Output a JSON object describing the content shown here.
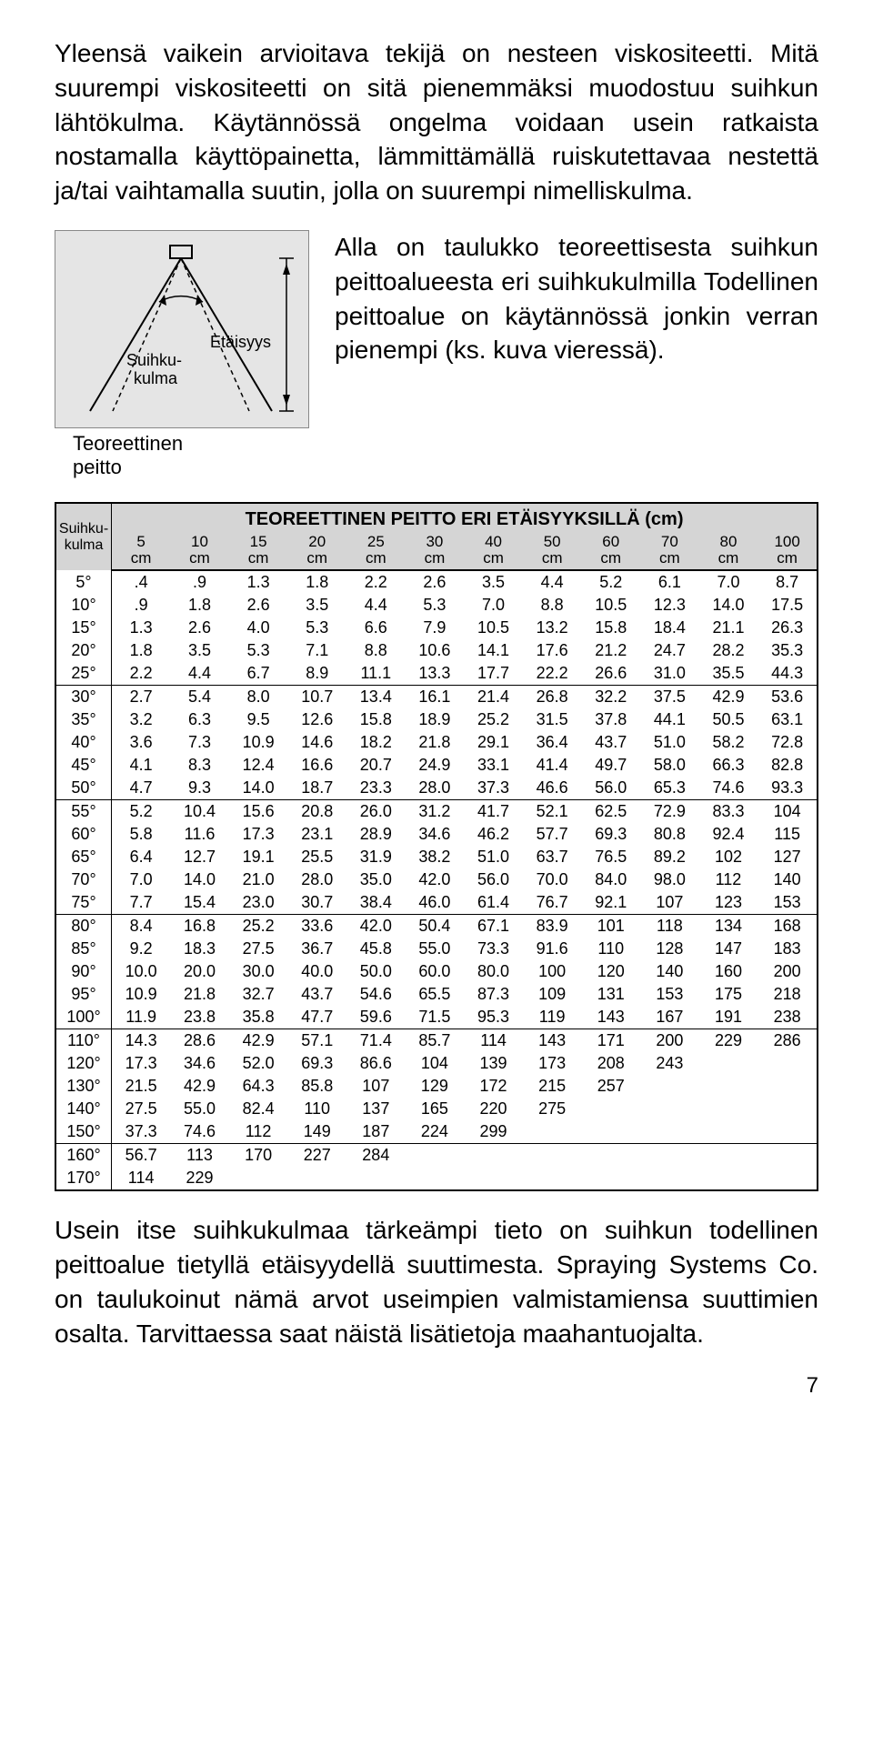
{
  "para1": "Yleensä vaikein arvioitava tekijä on nesteen viskositeetti. Mitä suurempi viskositeetti on sitä pienemmäksi muodostuu suihkun lähtökulma. Käytännössä ongelma voidaan usein ratkaista nostamalla käyttöpainetta, lämmittämällä ruiskutettavaa nestettä ja/tai vaihtamalla suutin, jolla on suurempi nimelliskulma.",
  "diag": {
    "angle_label": "Suihku-\nkulma",
    "dist_label": "Etäisyys",
    "below_label": "Teoreettinen\npeitto",
    "side_text": "Alla on taulukko teoreettisesta suihkun peittoalueesta eri suihkukulmilla Todellinen peittoalue on käytännössä jonkin verran pienempi (ks. kuva vieressä).",
    "bg": "#e5e5e5",
    "line": "#000000",
    "dash": "#000000"
  },
  "table": {
    "corner": "Suihku-\nkulma",
    "title": "TEOREETTINEN PEITTO ERI ETÄISYYKSILLÄ (cm)",
    "dist_headers": [
      "5",
      "10",
      "15",
      "20",
      "25",
      "30",
      "40",
      "50",
      "60",
      "70",
      "80",
      "100"
    ],
    "unit": "cm",
    "groups": [
      [
        [
          "5°",
          ".4",
          ".9",
          "1.3",
          "1.8",
          "2.2",
          "2.6",
          "3.5",
          "4.4",
          "5.2",
          "6.1",
          "7.0",
          "8.7"
        ],
        [
          "10°",
          ".9",
          "1.8",
          "2.6",
          "3.5",
          "4.4",
          "5.3",
          "7.0",
          "8.8",
          "10.5",
          "12.3",
          "14.0",
          "17.5"
        ],
        [
          "15°",
          "1.3",
          "2.6",
          "4.0",
          "5.3",
          "6.6",
          "7.9",
          "10.5",
          "13.2",
          "15.8",
          "18.4",
          "21.1",
          "26.3"
        ],
        [
          "20°",
          "1.8",
          "3.5",
          "5.3",
          "7.1",
          "8.8",
          "10.6",
          "14.1",
          "17.6",
          "21.2",
          "24.7",
          "28.2",
          "35.3"
        ],
        [
          "25°",
          "2.2",
          "4.4",
          "6.7",
          "8.9",
          "11.1",
          "13.3",
          "17.7",
          "22.2",
          "26.6",
          "31.0",
          "35.5",
          "44.3"
        ]
      ],
      [
        [
          "30°",
          "2.7",
          "5.4",
          "8.0",
          "10.7",
          "13.4",
          "16.1",
          "21.4",
          "26.8",
          "32.2",
          "37.5",
          "42.9",
          "53.6"
        ],
        [
          "35°",
          "3.2",
          "6.3",
          "9.5",
          "12.6",
          "15.8",
          "18.9",
          "25.2",
          "31.5",
          "37.8",
          "44.1",
          "50.5",
          "63.1"
        ],
        [
          "40°",
          "3.6",
          "7.3",
          "10.9",
          "14.6",
          "18.2",
          "21.8",
          "29.1",
          "36.4",
          "43.7",
          "51.0",
          "58.2",
          "72.8"
        ],
        [
          "45°",
          "4.1",
          "8.3",
          "12.4",
          "16.6",
          "20.7",
          "24.9",
          "33.1",
          "41.4",
          "49.7",
          "58.0",
          "66.3",
          "82.8"
        ],
        [
          "50°",
          "4.7",
          "9.3",
          "14.0",
          "18.7",
          "23.3",
          "28.0",
          "37.3",
          "46.6",
          "56.0",
          "65.3",
          "74.6",
          "93.3"
        ]
      ],
      [
        [
          "55°",
          "5.2",
          "10.4",
          "15.6",
          "20.8",
          "26.0",
          "31.2",
          "41.7",
          "52.1",
          "62.5",
          "72.9",
          "83.3",
          "104"
        ],
        [
          "60°",
          "5.8",
          "11.6",
          "17.3",
          "23.1",
          "28.9",
          "34.6",
          "46.2",
          "57.7",
          "69.3",
          "80.8",
          "92.4",
          "115"
        ],
        [
          "65°",
          "6.4",
          "12.7",
          "19.1",
          "25.5",
          "31.9",
          "38.2",
          "51.0",
          "63.7",
          "76.5",
          "89.2",
          "102",
          "127"
        ],
        [
          "70°",
          "7.0",
          "14.0",
          "21.0",
          "28.0",
          "35.0",
          "42.0",
          "56.0",
          "70.0",
          "84.0",
          "98.0",
          "112",
          "140"
        ],
        [
          "75°",
          "7.7",
          "15.4",
          "23.0",
          "30.7",
          "38.4",
          "46.0",
          "61.4",
          "76.7",
          "92.1",
          "107",
          "123",
          "153"
        ]
      ],
      [
        [
          "80°",
          "8.4",
          "16.8",
          "25.2",
          "33.6",
          "42.0",
          "50.4",
          "67.1",
          "83.9",
          "101",
          "118",
          "134",
          "168"
        ],
        [
          "85°",
          "9.2",
          "18.3",
          "27.5",
          "36.7",
          "45.8",
          "55.0",
          "73.3",
          "91.6",
          "110",
          "128",
          "147",
          "183"
        ],
        [
          "90°",
          "10.0",
          "20.0",
          "30.0",
          "40.0",
          "50.0",
          "60.0",
          "80.0",
          "100",
          "120",
          "140",
          "160",
          "200"
        ],
        [
          "95°",
          "10.9",
          "21.8",
          "32.7",
          "43.7",
          "54.6",
          "65.5",
          "87.3",
          "109",
          "131",
          "153",
          "175",
          "218"
        ],
        [
          "100°",
          "11.9",
          "23.8",
          "35.8",
          "47.7",
          "59.6",
          "71.5",
          "95.3",
          "119",
          "143",
          "167",
          "191",
          "238"
        ]
      ],
      [
        [
          "110°",
          "14.3",
          "28.6",
          "42.9",
          "57.1",
          "71.4",
          "85.7",
          "114",
          "143",
          "171",
          "200",
          "229",
          "286"
        ],
        [
          "120°",
          "17.3",
          "34.6",
          "52.0",
          "69.3",
          "86.6",
          "104",
          "139",
          "173",
          "208",
          "243",
          "",
          ""
        ],
        [
          "130°",
          "21.5",
          "42.9",
          "64.3",
          "85.8",
          "107",
          "129",
          "172",
          "215",
          "257",
          "",
          "",
          ""
        ],
        [
          "140°",
          "27.5",
          "55.0",
          "82.4",
          "110",
          "137",
          "165",
          "220",
          "275",
          "",
          "",
          "",
          ""
        ],
        [
          "150°",
          "37.3",
          "74.6",
          "112",
          "149",
          "187",
          "224",
          "299",
          "",
          "",
          "",
          "",
          ""
        ]
      ],
      [
        [
          "160°",
          "56.7",
          "113",
          "170",
          "227",
          "284",
          "",
          "",
          "",
          "",
          "",
          "",
          ""
        ],
        [
          "170°",
          "114",
          "229",
          "",
          "",
          "",
          "",
          "",
          "",
          "",
          "",
          "",
          ""
        ]
      ]
    ]
  },
  "para2": "Usein itse suihkukulmaa tärkeämpi tieto on suihkun todellinen peittoalue tietyllä etäisyydellä suuttimesta. Spraying Systems Co. on taulukoinut nämä arvot useimpien valmistamiensa suuttimien osalta. Tarvittaessa saat näistä lisätietoja maahantuojalta.",
  "page_num": "7"
}
